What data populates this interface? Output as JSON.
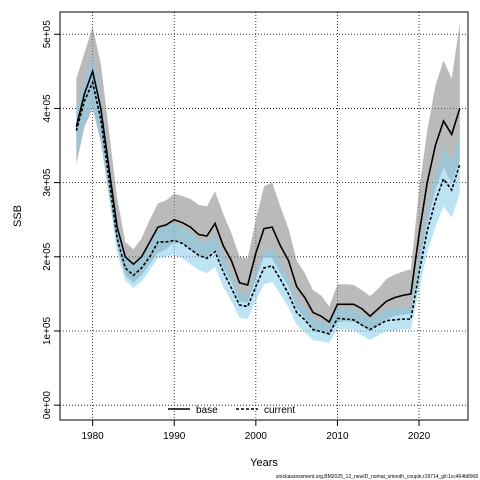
{
  "chart_data": {
    "type": "line",
    "xlabel": "Years",
    "ylabel": "SSB",
    "xlim": [
      1976,
      2026
    ],
    "ylim": [
      -20000,
      530000
    ],
    "x_ticks": [
      1980,
      1990,
      2000,
      2010,
      2020
    ],
    "y_ticks": [
      0,
      100000,
      200000,
      300000,
      400000,
      500000
    ],
    "x_tick_labels": [
      "1980",
      "1990",
      "2000",
      "2010",
      "2020"
    ],
    "y_tick_labels": [
      "0e+00",
      "1e+05",
      "2e+05",
      "3e+05",
      "4e+05",
      "5e+05"
    ],
    "grid": "dotted",
    "legend_position": "bottom-center",
    "footnote": "stockassessment.org,BM2025_12_newID_nomat_smooth_couple,r19714_git:1cc464b8068",
    "x": [
      1978,
      1979,
      1980,
      1981,
      1982,
      1983,
      1984,
      1985,
      1986,
      1987,
      1988,
      1989,
      1990,
      1991,
      1992,
      1993,
      1994,
      1995,
      1996,
      1997,
      1998,
      1999,
      2000,
      2001,
      2002,
      2003,
      2004,
      2005,
      2006,
      2007,
      2008,
      2009,
      2010,
      2011,
      2012,
      2013,
      2014,
      2015,
      2016,
      2017,
      2018,
      2019,
      2020,
      2021,
      2022,
      2023,
      2024,
      2025
    ],
    "series": [
      {
        "name": "base",
        "color": "#000000",
        "band_color": "#8c8c8c",
        "line_style": "solid",
        "values": [
          375000,
          420000,
          450000,
          400000,
          320000,
          240000,
          200000,
          190000,
          200000,
          220000,
          240000,
          243000,
          250000,
          246000,
          240000,
          230000,
          228000,
          245000,
          215000,
          195000,
          165000,
          162000,
          205000,
          238000,
          240000,
          215000,
          195000,
          160000,
          145000,
          125000,
          120000,
          112000,
          136000,
          136000,
          136000,
          130000,
          120000,
          130000,
          140000,
          145000,
          148000,
          150000,
          230000,
          300000,
          350000,
          383000,
          365000,
          400000
        ],
        "lower": [
          325000,
          375000,
          400000,
          355000,
          285000,
          215000,
          175000,
          165000,
          175000,
          190000,
          205000,
          210000,
          220000,
          218000,
          210000,
          202000,
          200000,
          210000,
          185000,
          165000,
          140000,
          138000,
          170000,
          200000,
          198000,
          178000,
          160000,
          130000,
          118000,
          102000,
          100000,
          96000,
          112000,
          113000,
          112000,
          107000,
          100000,
          108000,
          116000,
          120000,
          122000,
          123000,
          185000,
          245000,
          290000,
          320000,
          300000,
          330000
        ],
        "upper": [
          440000,
          475000,
          510000,
          460000,
          370000,
          280000,
          220000,
          210000,
          225000,
          250000,
          272000,
          276000,
          285000,
          282000,
          278000,
          270000,
          268000,
          288000,
          258000,
          232000,
          200000,
          198000,
          250000,
          295000,
          300000,
          268000,
          238000,
          195000,
          178000,
          155000,
          148000,
          133000,
          163000,
          163000,
          162000,
          155000,
          147000,
          157000,
          170000,
          176000,
          180000,
          183000,
          290000,
          370000,
          430000,
          465000,
          440000,
          515000
        ]
      },
      {
        "name": "current",
        "color": "#000000",
        "band_color": "#87ceeb",
        "line_style": "dashed",
        "values": [
          370000,
          410000,
          435000,
          385000,
          305000,
          225000,
          185000,
          175000,
          185000,
          200000,
          220000,
          220000,
          222000,
          218000,
          210000,
          202000,
          198000,
          207000,
          180000,
          158000,
          135000,
          133000,
          160000,
          185000,
          188000,
          170000,
          150000,
          125000,
          115000,
          102000,
          99000,
          96000,
          117000,
          116000,
          115000,
          108000,
          102000,
          108000,
          114000,
          115000,
          116000,
          116000,
          178000,
          235000,
          275000,
          305000,
          290000,
          325000
        ],
        "lower": [
          340000,
          380000,
          400000,
          355000,
          280000,
          205000,
          168000,
          158000,
          167000,
          182000,
          198000,
          200000,
          203000,
          198000,
          190000,
          182000,
          178000,
          186000,
          160000,
          140000,
          118000,
          116000,
          140000,
          163000,
          166000,
          150000,
          132000,
          108000,
          98000,
          88000,
          86000,
          84000,
          103000,
          102000,
          101000,
          94000,
          88000,
          94000,
          100000,
          101000,
          102000,
          102000,
          155000,
          205000,
          240000,
          268000,
          253000,
          285000
        ],
        "upper": [
          400000,
          440000,
          470000,
          415000,
          330000,
          245000,
          202000,
          192000,
          203000,
          220000,
          243000,
          242000,
          245000,
          240000,
          232000,
          224000,
          220000,
          230000,
          202000,
          178000,
          152000,
          150000,
          182000,
          208000,
          212000,
          192000,
          170000,
          143000,
          132000,
          117000,
          113000,
          110000,
          132000,
          131000,
          130000,
          122000,
          116000,
          123000,
          130000,
          131000,
          132000,
          132000,
          202000,
          268000,
          312000,
          348000,
          330000,
          368000
        ]
      }
    ]
  }
}
